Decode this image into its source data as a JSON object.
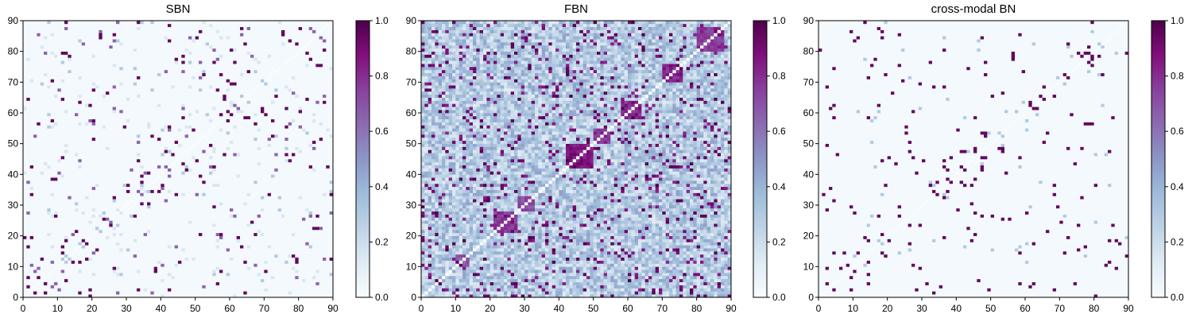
{
  "colormap": {
    "name": "BuPu",
    "stops": [
      "#f7fcfd",
      "#e0ecf4",
      "#bfd3e6",
      "#9ebcda",
      "#8c96c6",
      "#8c6bb1",
      "#88419d",
      "#810f7c",
      "#4d004b"
    ]
  },
  "chart_data": [
    {
      "type": "heatmap",
      "title": "SBN",
      "matrix_size": 90,
      "xlim": [
        0,
        90
      ],
      "ylim": [
        0,
        90
      ],
      "x_ticks": [
        0,
        10,
        20,
        30,
        40,
        50,
        60,
        70,
        80,
        90
      ],
      "y_ticks": [
        0,
        10,
        20,
        30,
        40,
        50,
        60,
        70,
        80,
        90
      ],
      "colorbar": {
        "range": [
          0,
          1
        ],
        "ticks": [
          "0.0",
          "0.2",
          "0.4",
          "0.6",
          "0.8",
          "1.0"
        ]
      },
      "pattern": {
        "kind": "sparse",
        "background": 0.02,
        "seed": 11,
        "random_density": 0.035,
        "band_width": 6,
        "band_density": 0.08
      }
    },
    {
      "type": "heatmap",
      "title": "FBN",
      "matrix_size": 90,
      "xlim": [
        0,
        90
      ],
      "ylim": [
        0,
        90
      ],
      "x_ticks": [
        0,
        10,
        20,
        30,
        40,
        50,
        60,
        70,
        80,
        90
      ],
      "y_ticks": [
        0,
        10,
        20,
        30,
        40,
        50,
        60,
        70,
        80,
        90
      ],
      "colorbar": {
        "range": [
          0,
          1
        ],
        "ticks": [
          "0.0",
          "0.2",
          "0.4",
          "0.6",
          "0.8",
          "1.0"
        ]
      },
      "pattern": {
        "kind": "dense",
        "seed": 23,
        "diagonal_zero": true,
        "blocks": [
          {
            "from": 10,
            "to": 14,
            "level": 0.75
          },
          {
            "from": 21,
            "to": 28,
            "level": 0.85
          },
          {
            "from": 28,
            "to": 33,
            "level": 0.8
          },
          {
            "from": 42,
            "to": 50,
            "level": 0.95
          },
          {
            "from": 50,
            "to": 55,
            "level": 0.85
          },
          {
            "from": 58,
            "to": 64,
            "level": 0.85
          },
          {
            "from": 70,
            "to": 76,
            "level": 0.9
          },
          {
            "from": 80,
            "to": 88,
            "level": 0.85
          }
        ]
      }
    },
    {
      "type": "heatmap",
      "title": "cross-modal BN",
      "matrix_size": 90,
      "xlim": [
        0,
        90
      ],
      "ylim": [
        0,
        90
      ],
      "x_ticks": [
        0,
        10,
        20,
        30,
        40,
        50,
        60,
        70,
        80,
        90
      ],
      "y_ticks": [
        0,
        10,
        20,
        30,
        40,
        50,
        60,
        70,
        80,
        90
      ],
      "colorbar": {
        "range": [
          0,
          1
        ],
        "ticks": [
          "0.0",
          "0.2",
          "0.4",
          "0.6",
          "0.8",
          "1.0"
        ]
      },
      "pattern": {
        "kind": "binary-sparse",
        "background": 0.02,
        "seed": 11,
        "random_density": 0.03,
        "band_width": 6,
        "band_density": 0.07
      }
    }
  ]
}
